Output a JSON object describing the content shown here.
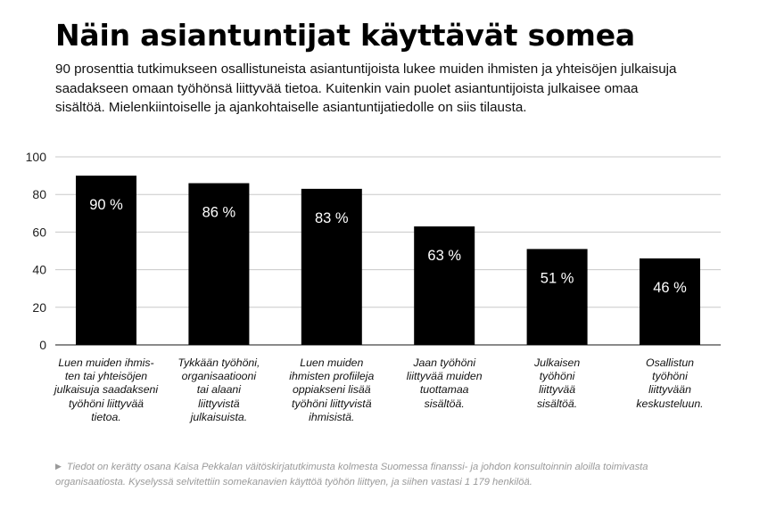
{
  "title": "Näin asiantuntijat käyttävät somea",
  "subtitle": "90 prosenttia tutkimukseen osallistuneista asiantuntijoista lukee muiden ihmisten ja yhteisöjen julkaisuja saadakseen omaan työhönsä liittyvää tietoa. Kuitenkin vain puolet asiantuntijoista julkaisee omaa sisältöä. Mielenkiintoiselle ja ajankohtaiselle asiantuntijatiedolle on siis tilausta.",
  "footnote": {
    "marker": "▶",
    "text": "Tiedot on kerätty osana Kaisa Pekkalan väitöskirjatutkimusta kolmesta Suomessa finanssi- ja johdon konsultoinnin aloilla toimivasta organisaatiosta. Kyselyssä selvitettiin somekanavien käyttöä työhön liittyen, ja siihen vastasi 1 179 henkilöä."
  },
  "chart_data": {
    "type": "bar",
    "categories": [
      "Luen muiden ihmis-\nten tai yhteisöjen\njulkaisuja saadakseni\ntyöhöni liittyvää\ntietoa.",
      "Tykkään työhöni,\norganisaatiooni\ntai alaani\nliittyvistä\njulkaisuista.",
      "Luen muiden\nihmisten profiileja\noppiakseni lisää\ntyöhöni liittyvistä\nihmisistä.",
      "Jaan työhöni\nliittyvää muiden\ntuottamaa\nsisältöä.",
      "Julkaisen\ntyöhöni\nliittyvää\nsisältöä.",
      "Osallistun\ntyöhöni\nliittyvään\nkeskusteluun."
    ],
    "values": [
      90,
      86,
      83,
      63,
      51,
      46
    ],
    "value_labels": [
      "90 %",
      "86 %",
      "83 %",
      "63 %",
      "51 %",
      "46 %"
    ],
    "yticks": [
      0,
      20,
      40,
      60,
      80,
      100
    ],
    "ylim": [
      0,
      100
    ],
    "grid": true,
    "bar_color": "#000000",
    "grid_color": "#c8c8c8",
    "label_color": "#ffffff"
  }
}
